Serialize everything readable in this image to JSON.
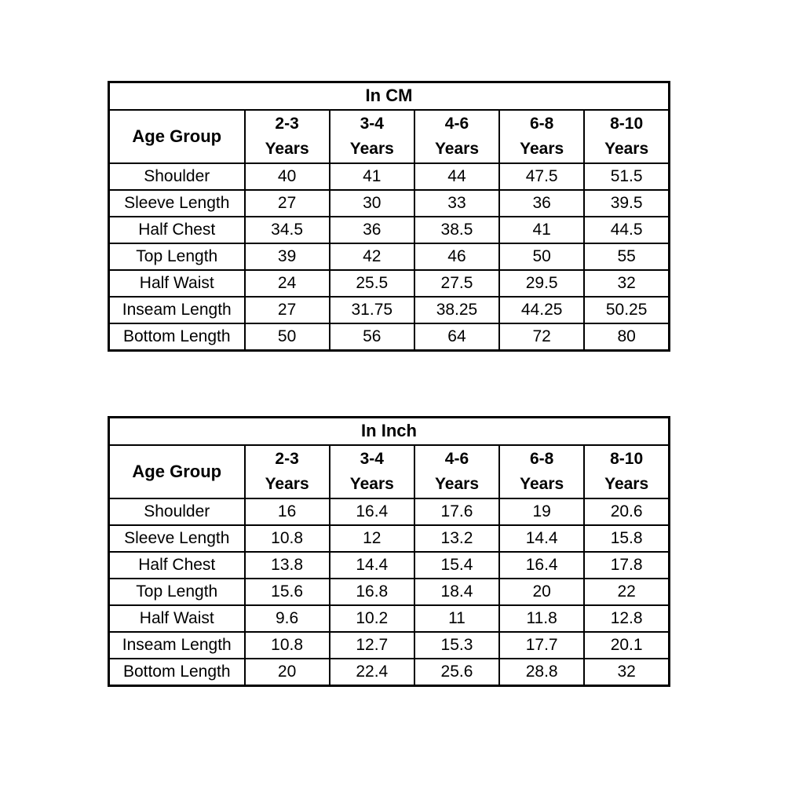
{
  "page": {
    "background_color": "#ffffff",
    "border_color": "#000000",
    "text_color": "#000000"
  },
  "tables": [
    {
      "title": "In CM",
      "header_label": "Age Group",
      "columns": [
        {
          "line1": "2-3",
          "line2": "Years"
        },
        {
          "line1": "3-4",
          "line2": "Years"
        },
        {
          "line1": "4-6",
          "line2": "Years"
        },
        {
          "line1": "6-8",
          "line2": "Years"
        },
        {
          "line1": "8-10",
          "line2": "Years"
        }
      ],
      "rows": [
        {
          "label": "Shoulder",
          "values": [
            "40",
            "41",
            "44",
            "47.5",
            "51.5"
          ]
        },
        {
          "label": "Sleeve Length",
          "values": [
            "27",
            "30",
            "33",
            "36",
            "39.5"
          ]
        },
        {
          "label": "Half Chest",
          "values": [
            "34.5",
            "36",
            "38.5",
            "41",
            "44.5"
          ]
        },
        {
          "label": "Top Length",
          "values": [
            "39",
            "42",
            "46",
            "50",
            "55"
          ]
        },
        {
          "label": "Half Waist",
          "values": [
            "24",
            "25.5",
            "27.5",
            "29.5",
            "32"
          ]
        },
        {
          "label": "Inseam Length",
          "values": [
            "27",
            "31.75",
            "38.25",
            "44.25",
            "50.25"
          ]
        },
        {
          "label": "Bottom Length",
          "values": [
            "50",
            "56",
            "64",
            "72",
            "80"
          ]
        }
      ]
    },
    {
      "title": "In Inch",
      "header_label": "Age Group",
      "columns": [
        {
          "line1": "2-3",
          "line2": "Years"
        },
        {
          "line1": "3-4",
          "line2": "Years"
        },
        {
          "line1": "4-6",
          "line2": "Years"
        },
        {
          "line1": "6-8",
          "line2": "Years"
        },
        {
          "line1": "8-10",
          "line2": "Years"
        }
      ],
      "rows": [
        {
          "label": "Shoulder",
          "values": [
            "16",
            "16.4",
            "17.6",
            "19",
            "20.6"
          ]
        },
        {
          "label": "Sleeve Length",
          "values": [
            "10.8",
            "12",
            "13.2",
            "14.4",
            "15.8"
          ]
        },
        {
          "label": "Half Chest",
          "values": [
            "13.8",
            "14.4",
            "15.4",
            "16.4",
            "17.8"
          ]
        },
        {
          "label": "Top Length",
          "values": [
            "15.6",
            "16.8",
            "18.4",
            "20",
            "22"
          ]
        },
        {
          "label": "Half Waist",
          "values": [
            "9.6",
            "10.2",
            "11",
            "11.8",
            "12.8"
          ]
        },
        {
          "label": "Inseam Length",
          "values": [
            "10.8",
            "12.7",
            "15.3",
            "17.7",
            "20.1"
          ]
        },
        {
          "label": "Bottom Length",
          "values": [
            "20",
            "22.4",
            "25.6",
            "28.8",
            "32"
          ]
        }
      ]
    }
  ]
}
